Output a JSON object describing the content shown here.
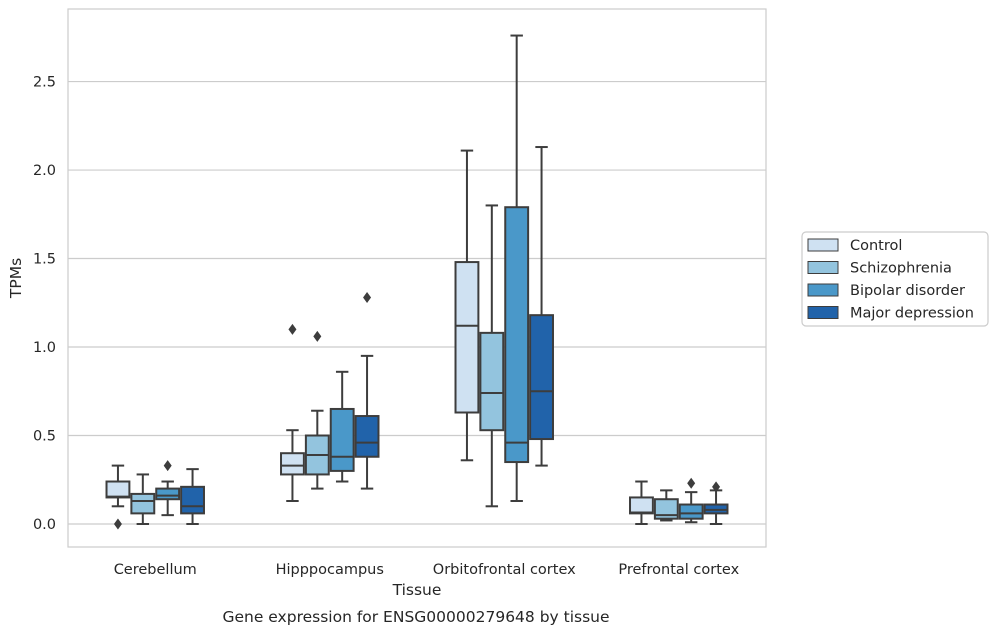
{
  "chart_data": {
    "type": "box",
    "title": "",
    "caption": "Gene expression for ENSG00000279648 by tissue",
    "xlabel": "Tissue",
    "ylabel": "TPMs",
    "ylim": [
      -0.13,
      2.91
    ],
    "yticks": [
      "0.0",
      "0.5",
      "1.0",
      "1.5",
      "2.0",
      "2.5"
    ],
    "grid": true,
    "legend_position": "right",
    "categories": [
      "Cerebellum",
      "Hipppocampus",
      "Orbitofrontal cortex",
      "Prefrontal cortex"
    ],
    "series": [
      {
        "name": "Control",
        "color": "#cfe1f2",
        "boxes": [
          {
            "whislo": 0.1,
            "q1": 0.15,
            "med": 0.155,
            "q3": 0.24,
            "whishi": 0.33,
            "fliers": [
              0.0
            ]
          },
          {
            "whislo": 0.13,
            "q1": 0.28,
            "med": 0.33,
            "q3": 0.4,
            "whishi": 0.53,
            "fliers": [
              1.1
            ]
          },
          {
            "whislo": 0.36,
            "q1": 0.63,
            "med": 1.12,
            "q3": 1.48,
            "whishi": 2.11,
            "fliers": []
          },
          {
            "whislo": 0.0,
            "q1": 0.06,
            "med": 0.065,
            "q3": 0.15,
            "whishi": 0.24,
            "fliers": []
          }
        ]
      },
      {
        "name": "Schizophrenia",
        "color": "#93c4de",
        "boxes": [
          {
            "whislo": 0.0,
            "q1": 0.06,
            "med": 0.13,
            "q3": 0.17,
            "whishi": 0.28,
            "fliers": []
          },
          {
            "whislo": 0.2,
            "q1": 0.28,
            "med": 0.39,
            "q3": 0.5,
            "whishi": 0.64,
            "fliers": [
              1.06
            ]
          },
          {
            "whislo": 0.1,
            "q1": 0.53,
            "med": 0.74,
            "q3": 1.08,
            "whishi": 1.8,
            "fliers": []
          },
          {
            "whislo": 0.02,
            "q1": 0.03,
            "med": 0.05,
            "q3": 0.14,
            "whishi": 0.19,
            "fliers": []
          }
        ]
      },
      {
        "name": "Bipolar disorder",
        "color": "#4a98c9",
        "boxes": [
          {
            "whislo": 0.05,
            "q1": 0.14,
            "med": 0.16,
            "q3": 0.2,
            "whishi": 0.24,
            "fliers": [
              0.33
            ]
          },
          {
            "whislo": 0.24,
            "q1": 0.3,
            "med": 0.38,
            "q3": 0.65,
            "whishi": 0.86,
            "fliers": []
          },
          {
            "whislo": 0.13,
            "q1": 0.35,
            "med": 0.46,
            "q3": 1.79,
            "whishi": 2.76,
            "fliers": []
          },
          {
            "whislo": 0.01,
            "q1": 0.03,
            "med": 0.06,
            "q3": 0.11,
            "whishi": 0.18,
            "fliers": [
              0.23
            ]
          }
        ]
      },
      {
        "name": "Major depression",
        "color": "#2163aa",
        "boxes": [
          {
            "whislo": 0.0,
            "q1": 0.06,
            "med": 0.1,
            "q3": 0.21,
            "whishi": 0.31,
            "fliers": []
          },
          {
            "whislo": 0.2,
            "q1": 0.38,
            "med": 0.46,
            "q3": 0.61,
            "whishi": 0.95,
            "fliers": [
              1.28
            ]
          },
          {
            "whislo": 0.33,
            "q1": 0.48,
            "med": 0.75,
            "q3": 1.18,
            "whishi": 2.13,
            "fliers": []
          },
          {
            "whislo": 0.0,
            "q1": 0.06,
            "med": 0.08,
            "q3": 0.11,
            "whishi": 0.19,
            "fliers": [
              0.21
            ]
          }
        ]
      }
    ]
  }
}
